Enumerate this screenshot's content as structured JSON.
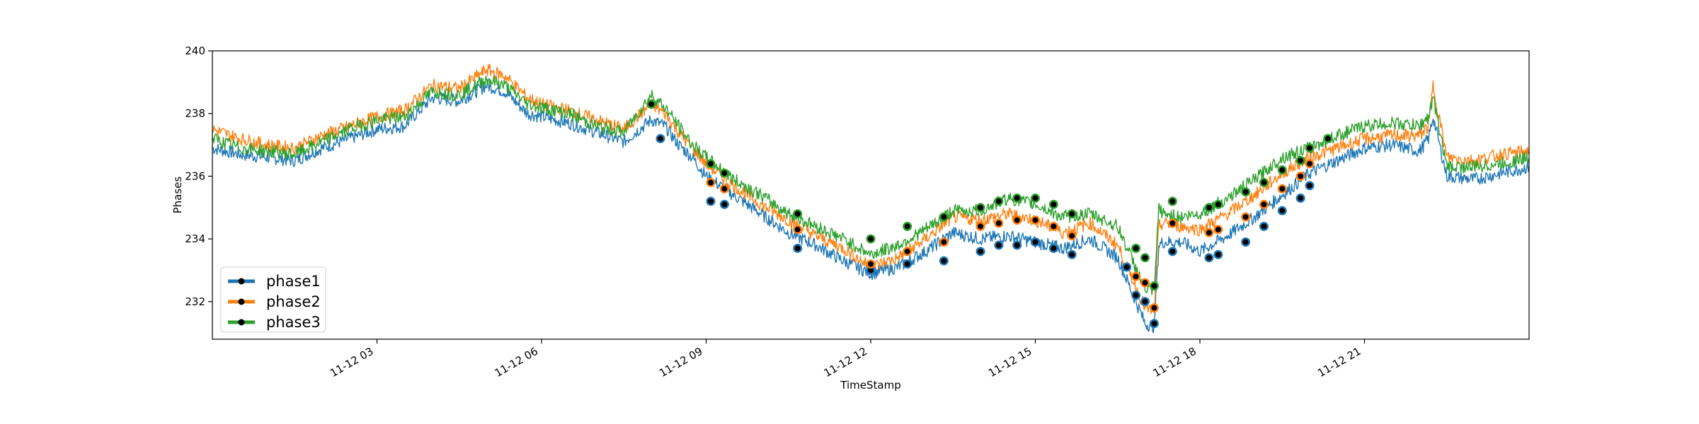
{
  "chart_data": {
    "type": "line",
    "xlabel": "TimeStamp",
    "ylabel": "Phases",
    "xlim": [
      "2021-11-12 00:00",
      "2021-11-12 24:00"
    ],
    "ylim": [
      230.8,
      240
    ],
    "x_ticks": [
      {
        "hour": 3,
        "label": "11-12 03"
      },
      {
        "hour": 6,
        "label": "11-12 06"
      },
      {
        "hour": 9,
        "label": "11-12 09"
      },
      {
        "hour": 12,
        "label": "11-12 12"
      },
      {
        "hour": 15,
        "label": "11-12 15"
      },
      {
        "hour": 18,
        "label": "11-12 18"
      },
      {
        "hour": 21,
        "label": "11-12 21"
      }
    ],
    "y_ticks": [
      232,
      234,
      236,
      238,
      240
    ],
    "legend_position": "lower-left",
    "colors": {
      "phase1": "#1f77b4",
      "phase2": "#ff7f0e",
      "phase3": "#2ca02c",
      "marker": "#000000"
    },
    "series": [
      {
        "name": "phase1",
        "color": "#1f77b4",
        "x": [
          "00:00",
          "00:30",
          "01:00",
          "01:30",
          "02:00",
          "02:30",
          "03:00",
          "03:30",
          "04:00",
          "04:30",
          "05:00",
          "05:20",
          "05:45",
          "06:00",
          "06:30",
          "07:00",
          "07:30",
          "08:00",
          "08:15",
          "08:30",
          "08:45",
          "09:00",
          "09:30",
          "10:00",
          "10:30",
          "11:00",
          "11:30",
          "12:00",
          "12:30",
          "13:00",
          "13:30",
          "14:00",
          "14:30",
          "15:00",
          "15:30",
          "16:00",
          "16:30",
          "17:00",
          "17:10",
          "17:15",
          "17:20",
          "17:40",
          "18:00",
          "18:30",
          "19:00",
          "19:30",
          "20:00",
          "20:30",
          "21:00",
          "21:30",
          "22:00",
          "22:10",
          "22:15",
          "22:30",
          "23:00",
          "23:30",
          "24:00"
        ],
        "y": [
          236.9,
          236.7,
          236.6,
          236.5,
          236.9,
          237.2,
          237.5,
          237.6,
          238.5,
          238.4,
          238.9,
          238.7,
          238.0,
          237.9,
          237.7,
          237.4,
          237.1,
          237.8,
          237.6,
          237.0,
          236.6,
          236.0,
          235.4,
          234.8,
          234.2,
          233.8,
          233.3,
          232.9,
          233.1,
          233.6,
          234.2,
          234.0,
          234.1,
          233.9,
          233.7,
          234.0,
          233.4,
          231.3,
          231.2,
          233.8,
          233.9,
          233.9,
          233.6,
          234.1,
          234.7,
          235.4,
          236.1,
          236.5,
          236.9,
          237.0,
          236.8,
          237.2,
          237.9,
          236.0,
          235.9,
          236.1,
          236.3
        ]
      },
      {
        "name": "phase2",
        "color": "#ff7f0e",
        "x": [
          "00:00",
          "00:30",
          "01:00",
          "01:30",
          "02:00",
          "02:30",
          "03:00",
          "03:30",
          "04:00",
          "04:30",
          "05:00",
          "05:20",
          "05:45",
          "06:00",
          "06:30",
          "07:00",
          "07:30",
          "08:00",
          "08:15",
          "08:30",
          "08:45",
          "09:00",
          "09:30",
          "10:00",
          "10:30",
          "11:00",
          "11:30",
          "12:00",
          "12:30",
          "13:00",
          "13:30",
          "14:00",
          "14:30",
          "15:00",
          "15:30",
          "16:00",
          "16:30",
          "17:00",
          "17:10",
          "17:15",
          "17:20",
          "17:40",
          "18:00",
          "18:30",
          "19:00",
          "19:30",
          "20:00",
          "20:30",
          "21:00",
          "21:30",
          "22:00",
          "22:10",
          "22:15",
          "22:30",
          "23:00",
          "23:30",
          "24:00"
        ],
        "y": [
          237.5,
          237.2,
          237.0,
          236.9,
          237.3,
          237.6,
          237.9,
          238.1,
          238.9,
          238.8,
          239.4,
          239.2,
          238.5,
          238.3,
          238.1,
          237.8,
          237.5,
          238.3,
          238.0,
          237.4,
          236.9,
          236.4,
          235.7,
          235.1,
          234.6,
          234.1,
          233.7,
          233.1,
          233.4,
          234.0,
          234.7,
          234.6,
          234.8,
          234.6,
          234.2,
          234.5,
          233.8,
          231.8,
          231.7,
          234.4,
          234.5,
          234.4,
          234.3,
          234.8,
          235.4,
          236.1,
          236.6,
          236.9,
          237.2,
          237.3,
          237.3,
          237.6,
          238.9,
          236.6,
          236.5,
          236.7,
          236.8
        ]
      },
      {
        "name": "phase3",
        "color": "#2ca02c",
        "x": [
          "00:00",
          "00:30",
          "01:00",
          "01:30",
          "02:00",
          "02:30",
          "03:00",
          "03:30",
          "04:00",
          "04:30",
          "05:00",
          "05:20",
          "05:45",
          "06:00",
          "06:30",
          "07:00",
          "07:30",
          "08:00",
          "08:15",
          "08:30",
          "08:45",
          "09:00",
          "09:30",
          "10:00",
          "10:30",
          "11:00",
          "11:30",
          "12:00",
          "12:30",
          "13:00",
          "13:30",
          "14:00",
          "14:30",
          "15:00",
          "15:30",
          "16:00",
          "16:30",
          "17:00",
          "17:10",
          "17:15",
          "17:20",
          "17:40",
          "18:00",
          "18:30",
          "19:00",
          "19:30",
          "20:00",
          "20:30",
          "21:00",
          "21:30",
          "22:00",
          "22:10",
          "22:15",
          "22:30",
          "23:00",
          "23:30",
          "24:00"
        ],
        "y": [
          237.2,
          236.9,
          236.8,
          236.7,
          237.1,
          237.5,
          237.8,
          237.9,
          238.7,
          238.6,
          239.1,
          238.9,
          238.3,
          238.2,
          238.0,
          237.6,
          237.4,
          238.6,
          238.2,
          237.6,
          237.0,
          236.6,
          235.9,
          235.4,
          234.8,
          234.4,
          234.0,
          233.5,
          233.8,
          234.3,
          234.9,
          234.9,
          235.3,
          235.1,
          234.7,
          234.8,
          234.4,
          232.4,
          232.3,
          235.0,
          234.8,
          234.7,
          234.8,
          235.3,
          235.9,
          236.6,
          236.9,
          237.3,
          237.6,
          237.7,
          237.6,
          237.9,
          238.5,
          236.3,
          236.3,
          236.4,
          236.6
        ]
      }
    ],
    "highlighted_points": [
      {
        "series": "phase1",
        "x": [
          "08:10",
          "09:05",
          "09:20",
          "10:40",
          "12:00",
          "12:40",
          "13:20",
          "14:00",
          "14:20",
          "14:40",
          "15:00",
          "15:20",
          "15:40",
          "16:40",
          "16:50",
          "17:00",
          "17:10",
          "17:30",
          "18:10",
          "18:20",
          "18:50",
          "19:10",
          "19:30",
          "19:50",
          "20:00"
        ],
        "y": [
          237.2,
          235.2,
          235.1,
          233.7,
          233.0,
          233.2,
          233.3,
          233.6,
          233.8,
          233.8,
          233.9,
          233.7,
          233.5,
          233.1,
          232.2,
          232.0,
          231.3,
          233.6,
          233.4,
          233.5,
          233.9,
          234.4,
          234.9,
          235.3,
          235.7
        ]
      },
      {
        "series": "phase2",
        "x": [
          "09:05",
          "09:20",
          "10:40",
          "12:00",
          "12:40",
          "13:20",
          "14:00",
          "14:20",
          "14:40",
          "15:00",
          "15:20",
          "15:40",
          "16:50",
          "17:00",
          "17:10",
          "17:30",
          "18:10",
          "18:20",
          "18:50",
          "19:10",
          "19:30",
          "19:50",
          "20:00"
        ],
        "y": [
          235.8,
          235.6,
          234.3,
          233.2,
          233.6,
          233.9,
          234.4,
          234.5,
          234.6,
          234.6,
          234.4,
          234.1,
          232.8,
          232.6,
          231.8,
          234.5,
          234.2,
          234.3,
          234.7,
          235.1,
          235.6,
          236.0,
          236.4
        ]
      },
      {
        "series": "phase3",
        "x": [
          "08:00",
          "09:05",
          "09:20",
          "10:40",
          "12:00",
          "12:40",
          "13:20",
          "14:00",
          "14:20",
          "14:40",
          "15:00",
          "15:20",
          "15:40",
          "16:50",
          "17:00",
          "17:10",
          "17:30",
          "18:10",
          "18:20",
          "18:50",
          "19:10",
          "19:30",
          "19:50",
          "20:00",
          "20:20"
        ],
        "y": [
          238.3,
          236.4,
          236.1,
          234.8,
          234.0,
          234.4,
          234.7,
          235.0,
          235.2,
          235.3,
          235.3,
          235.1,
          234.8,
          233.7,
          233.4,
          232.5,
          235.2,
          235.0,
          235.1,
          235.5,
          235.8,
          236.2,
          236.5,
          236.9,
          237.2
        ]
      }
    ]
  }
}
